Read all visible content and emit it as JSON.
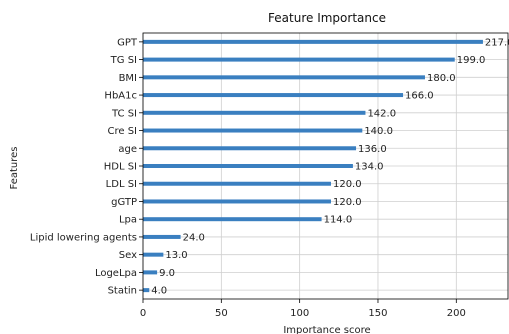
{
  "chart_data": {
    "type": "bar",
    "orientation": "horizontal",
    "title": "Feature Importance",
    "xlabel": "Importance score",
    "ylabel": "Features",
    "categories": [
      "GPT",
      "TG SI",
      "BMI",
      "HbA1c",
      "TC SI",
      "Cre SI",
      "age",
      "HDL SI",
      "LDL SI",
      "gGTP",
      "Lpa",
      "Lipid lowering agents",
      "Sex",
      "LogeLpa",
      "Statin"
    ],
    "values": [
      217.0,
      199.0,
      180.0,
      166.0,
      142.0,
      140.0,
      136.0,
      134.0,
      120.0,
      120.0,
      114.0,
      24.0,
      13.0,
      9.0,
      4.0
    ],
    "value_labels": [
      "217.0",
      "199.0",
      "180.0",
      "166.0",
      "142.0",
      "140.0",
      "136.0",
      "134.0",
      "120.0",
      "120.0",
      "114.0",
      "24.0",
      "13.0",
      "9.0",
      "4.0"
    ],
    "xticks": [
      0,
      50,
      100,
      150,
      200
    ],
    "xtick_labels": [
      "0",
      "50",
      "100",
      "150",
      "200"
    ],
    "xlim": [
      0,
      233
    ],
    "grid": true,
    "bar_color": "#3a7fc0"
  }
}
